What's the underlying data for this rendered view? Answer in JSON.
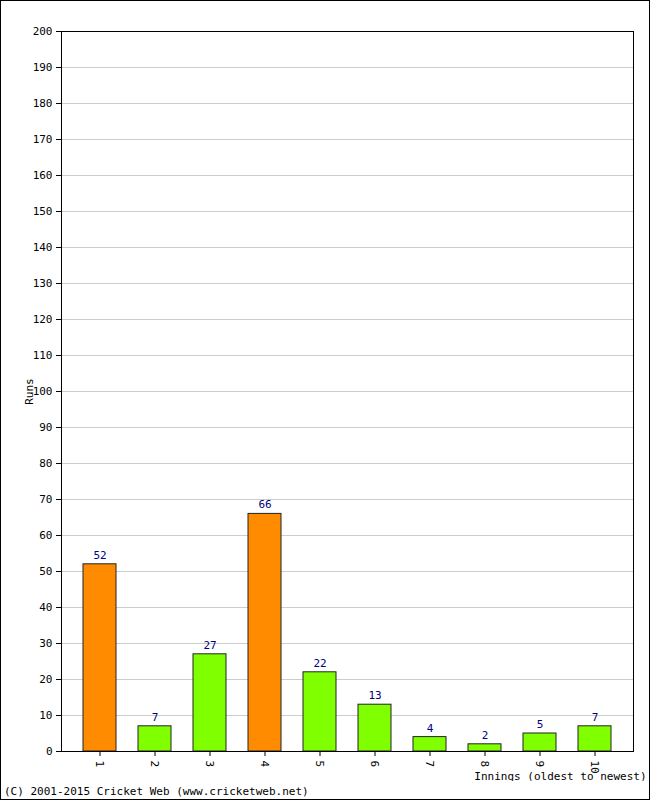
{
  "chart_data": {
    "type": "bar",
    "categories": [
      "1",
      "2",
      "3",
      "4",
      "5",
      "6",
      "7",
      "8",
      "9",
      "10"
    ],
    "values": [
      52,
      7,
      27,
      66,
      22,
      13,
      4,
      2,
      5,
      7
    ],
    "colors": [
      "#ff8c00",
      "#7fff00",
      "#7fff00",
      "#ff8c00",
      "#7fff00",
      "#7fff00",
      "#7fff00",
      "#7fff00",
      "#7fff00",
      "#7fff00"
    ],
    "x_label": "Innings (oldest to newest)",
    "y_label": "Runs",
    "caption": "(C) 2001-2015 Cricket Web (www.cricketweb.net)",
    "ylim": [
      0,
      200
    ],
    "yticks": [
      0,
      10,
      20,
      30,
      40,
      50,
      60,
      70,
      80,
      90,
      100,
      110,
      120,
      130,
      140,
      150,
      160,
      170,
      180,
      190,
      200
    ],
    "grid": true,
    "data_labels": true
  }
}
